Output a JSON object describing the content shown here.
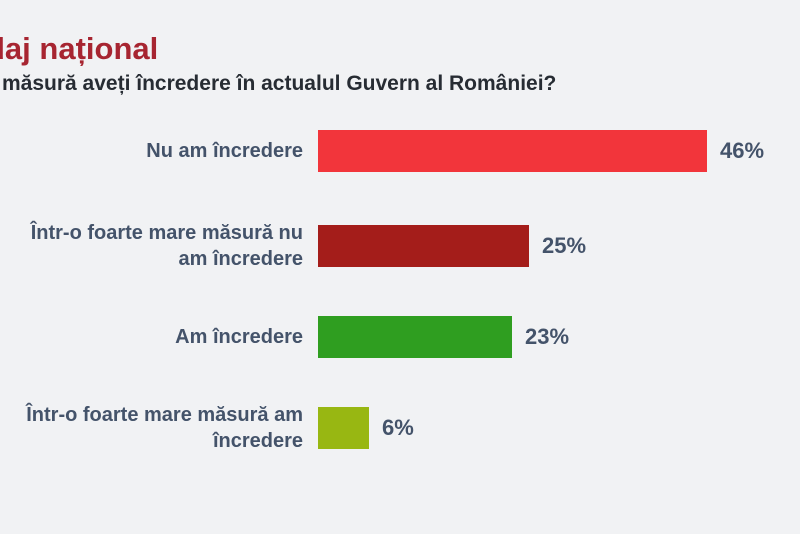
{
  "header": {
    "title": "daj național",
    "title_color": "#a72531"
  },
  "chart_data": {
    "type": "bar",
    "orientation": "horizontal",
    "title": "măsură aveți încredere în actualul Guvern al României?",
    "categories": [
      "Nu am încredere",
      "Într-o foarte mare măsură nu am încredere",
      "Am încredere",
      "Într-o foarte mare măsură am încredere"
    ],
    "values": [
      46,
      25,
      23,
      6
    ],
    "value_labels": [
      "46%",
      "25%",
      "23%",
      "6%"
    ],
    "bar_colors": [
      "#f2353b",
      "#a41d1a",
      "#2f9e20",
      "#98b712"
    ],
    "label_color": "#44536a",
    "background_color": "#f1f2f4",
    "xlim": [
      0,
      50
    ],
    "grid": false,
    "legend": false,
    "data_labels_position": "right-of-bar"
  }
}
